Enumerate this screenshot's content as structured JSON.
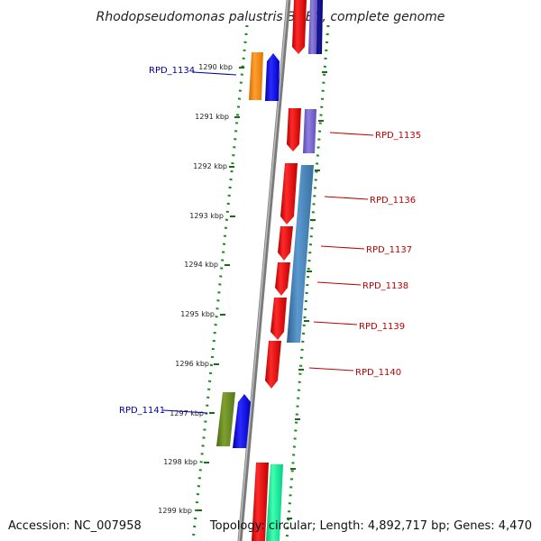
{
  "title": "Rhodopseudomonas palustris BisB5, complete genome",
  "footer": {
    "accession": "Accession: NC_007958",
    "summary": "Topology: circular; Length: 4,892,717 bp; Genes: 4,470"
  },
  "ticks": [
    "1290 kbp",
    "1291 kbp",
    "1292 kbp",
    "1293 kbp",
    "1294 kbp",
    "1295 kbp",
    "1296 kbp",
    "1297 kbp",
    "1298 kbp",
    "1299 kbp"
  ],
  "gene_labels": [
    {
      "id": "RPD_1134",
      "color": "#0000aa"
    },
    {
      "id": "RPD_1135",
      "color": "#c00000"
    },
    {
      "id": "RPD_1136",
      "color": "#c00000"
    },
    {
      "id": "RPD_1137",
      "color": "#c00000"
    },
    {
      "id": "RPD_1138",
      "color": "#c00000"
    },
    {
      "id": "RPD_1139",
      "color": "#c00000"
    },
    {
      "id": "RPD_1140",
      "color": "#c00000"
    },
    {
      "id": "RPD_1141",
      "color": "#0000aa"
    }
  ],
  "colors": {
    "backbone": "#8a8a8a",
    "dots": "#1a8a1a",
    "tick_mark": "#1a6a1a",
    "red_gene": "#ff0000",
    "blue_gene": "#0000ff",
    "navy_gene": "#000080",
    "purple_gene": "#7b68cc",
    "steel_gene": "#4682b4",
    "orange_gene": "#ff8c00",
    "olive_gene": "#6b8e23",
    "green_gene": "#00fa9a"
  }
}
